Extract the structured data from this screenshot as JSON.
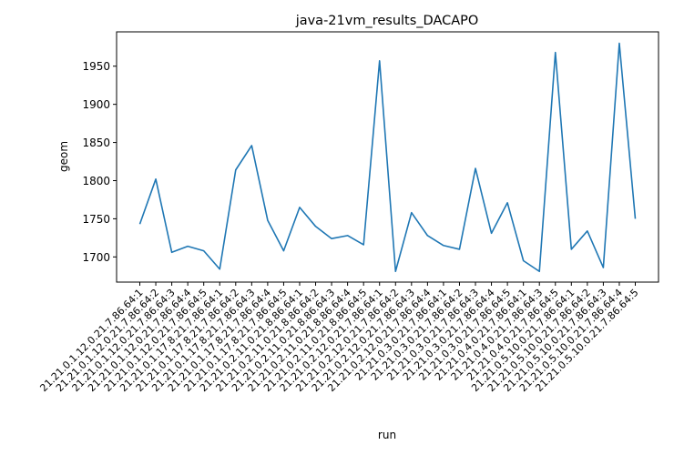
{
  "chart_data": {
    "type": "line",
    "title": "java-21vm_results_DACAPO",
    "xlabel": "run",
    "ylabel": "geom",
    "ylim": [
      1667,
      1995
    ],
    "yticks": [
      1700,
      1750,
      1800,
      1850,
      1900,
      1950
    ],
    "grid": false,
    "categories": [
      "21.21.0.1.12.0.21.7.86.64:1",
      "21.21.0.1.12.0.21.7.86.64:2",
      "21.21.0.1.12.0.21.7.86.64:3",
      "21.21.0.1.12.0.21.7.86.64:4",
      "21.21.0.1.12.0.21.7.86.64:5",
      "21.21.0.1.17.8.21.7.86.64:1",
      "21.21.0.1.17.8.21.7.86.64:2",
      "21.21.0.1.17.8.21.7.86.64:3",
      "21.21.0.1.17.8.21.7.86.64:4",
      "21.21.0.1.17.8.21.7.86.64:5",
      "21.21.0.2.11.0.21.8.86.64:1",
      "21.21.0.2.11.0.21.8.86.64:2",
      "21.21.0.2.11.0.21.8.86.64:3",
      "21.21.0.2.11.0.21.8.86.64:4",
      "21.21.0.2.11.0.21.8.86.64:5",
      "21.21.0.2.12.0.21.7.86.64:1",
      "21.21.0.2.12.0.21.7.86.64:2",
      "21.21.0.2.12.0.21.7.86.64:3",
      "21.21.0.2.12.0.21.7.86.64:4",
      "21.21.0.3.0.21.7.86.64:1",
      "21.21.0.3.0.21.7.86.64:2",
      "21.21.0.3.0.21.7.86.64:3",
      "21.21.0.3.0.21.7.86.64:4",
      "21.21.0.3.0.21.7.86.64:5",
      "21.21.0.4.0.21.7.86.64:1",
      "21.21.0.4.0.21.7.86.64:3",
      "21.21.0.4.0.21.7.86.64:5",
      "21.21.0.5.10.0.21.7.86.64:1",
      "21.21.0.5.10.0.21.7.86.64:2",
      "21.21.0.5.10.0.21.7.86.64:3",
      "21.21.0.5.10.0.21.7.86.64:4",
      "21.21.0.5.10.0.21.7.86.64:5"
    ],
    "series": [
      {
        "color": "#1f77b4",
        "values": [
          1743,
          1802,
          1706,
          1714,
          1708,
          1684,
          1814,
          1846,
          1748,
          1708,
          1765,
          1740,
          1724,
          1728,
          1716,
          1957,
          1681,
          1758,
          1728,
          1715,
          1710,
          1816,
          1731,
          1771,
          1695,
          1681,
          1968,
          1710,
          1734,
          1686,
          1980,
          1750
        ]
      }
    ]
  }
}
